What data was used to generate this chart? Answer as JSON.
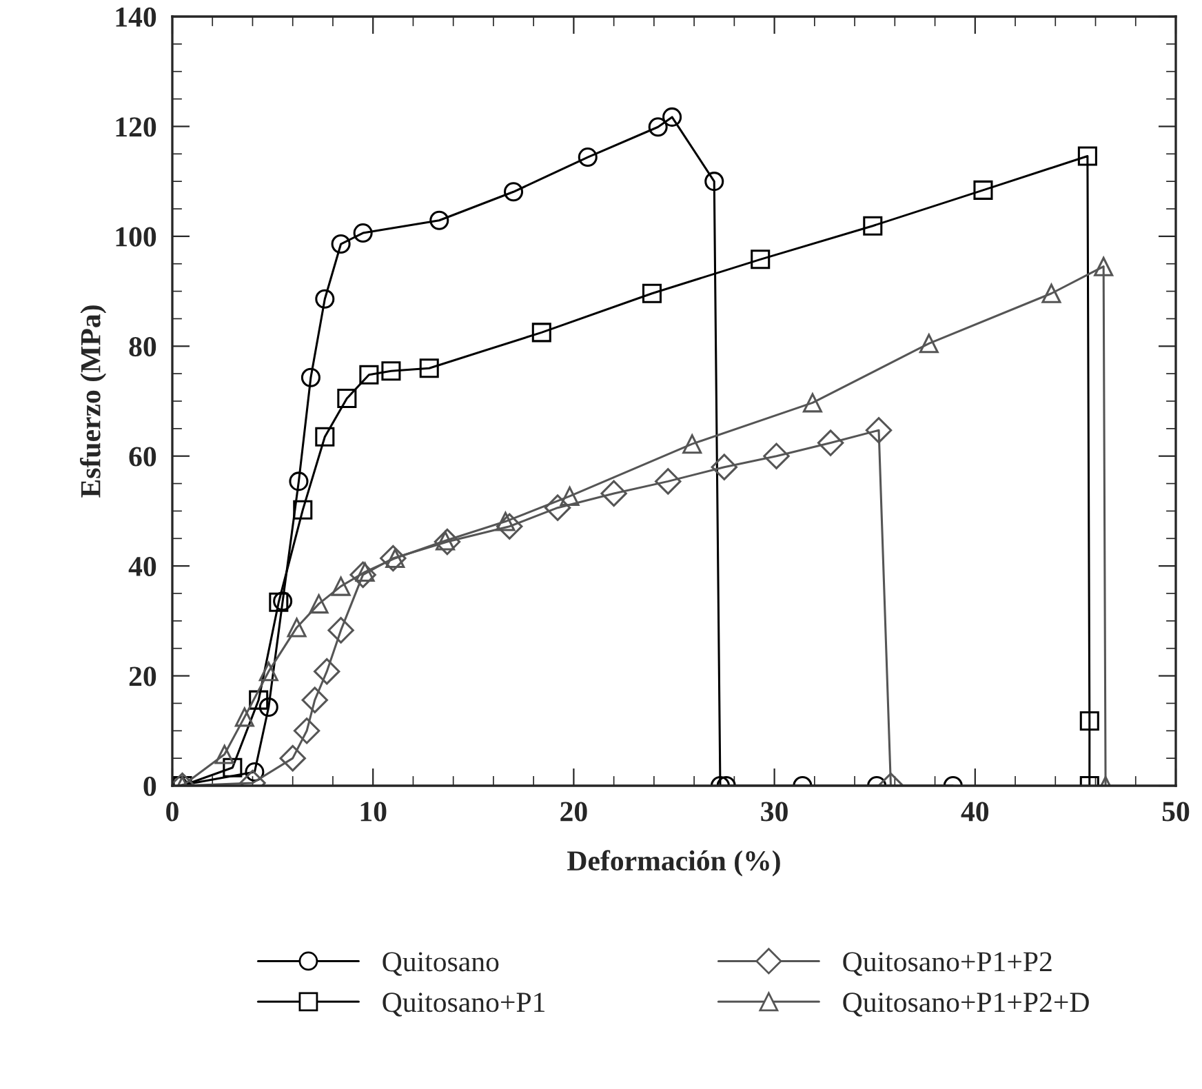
{
  "chart_data": {
    "type": "line",
    "xlabel": "Deformación (%)",
    "ylabel": "Esfuerzo (MPa)",
    "xlim": [
      0,
      50
    ],
    "ylim": [
      0,
      140
    ],
    "xticks": [
      0,
      10,
      20,
      30,
      40,
      50
    ],
    "yticks": [
      0,
      20,
      40,
      60,
      80,
      100,
      120,
      140
    ],
    "grid": false,
    "legend": "bottom",
    "series": [
      {
        "name": "Quitosano",
        "color": "#000000",
        "marker": "circle",
        "x": [
          0.3,
          4.1,
          4.8,
          5.5,
          6.3,
          6.9,
          7.6,
          8.4,
          9.5,
          13.3,
          17.0,
          20.7,
          24.2,
          24.9,
          27.0,
          27.3,
          27.6,
          31.4,
          35.1,
          38.9
        ],
        "values": [
          0,
          2.5,
          14.3,
          33.6,
          55.4,
          74.3,
          88.6,
          98.6,
          100.6,
          102.9,
          108.1,
          114.4,
          119.9,
          121.7,
          110,
          0,
          0,
          0,
          0,
          0
        ]
      },
      {
        "name": "Quitosano+P1",
        "color": "#000000",
        "marker": "square",
        "x": [
          0.5,
          3.0,
          4.3,
          5.3,
          6.5,
          7.6,
          8.7,
          9.8,
          10.9,
          12.8,
          18.4,
          23.9,
          29.3,
          34.9,
          40.4,
          45.6,
          45.7,
          45.7
        ],
        "values": [
          0,
          3.3,
          15.6,
          33.4,
          50.2,
          63.5,
          70.5,
          74.8,
          75.5,
          76,
          82.5,
          89.6,
          95.8,
          101.9,
          108.4,
          114.6,
          11.8,
          0
        ]
      },
      {
        "name": "Quitosano+P1+P2",
        "color": "#555555",
        "marker": "diamond",
        "x": [
          0.5,
          4.0,
          6.0,
          6.7,
          7.1,
          7.7,
          8.4,
          9.5,
          11.0,
          13.7,
          16.8,
          19.2,
          22.0,
          24.7,
          27.5,
          30.1,
          32.8,
          35.2,
          35.8
        ],
        "values": [
          0,
          0.5,
          5,
          10,
          15.6,
          20.8,
          28.3,
          38.4,
          41.4,
          44.4,
          47.2,
          50.6,
          53.2,
          55.4,
          58,
          60,
          62.4,
          64.7,
          0
        ]
      },
      {
        "name": "Quitosano+P1+P2+D",
        "color": "#555555",
        "marker": "triangle",
        "x": [
          0.5,
          2.6,
          3.6,
          4.8,
          6.2,
          7.3,
          8.4,
          9.6,
          11.1,
          13.6,
          16.6,
          19.8,
          25.9,
          31.9,
          37.7,
          43.8,
          46.4,
          46.5
        ],
        "values": [
          0,
          5.7,
          12.5,
          20.8,
          28.8,
          33.1,
          36.3,
          38.9,
          41.4,
          44.6,
          48.1,
          52.7,
          62.2,
          69.7,
          80.5,
          89.6,
          94.5,
          0
        ]
      }
    ]
  }
}
